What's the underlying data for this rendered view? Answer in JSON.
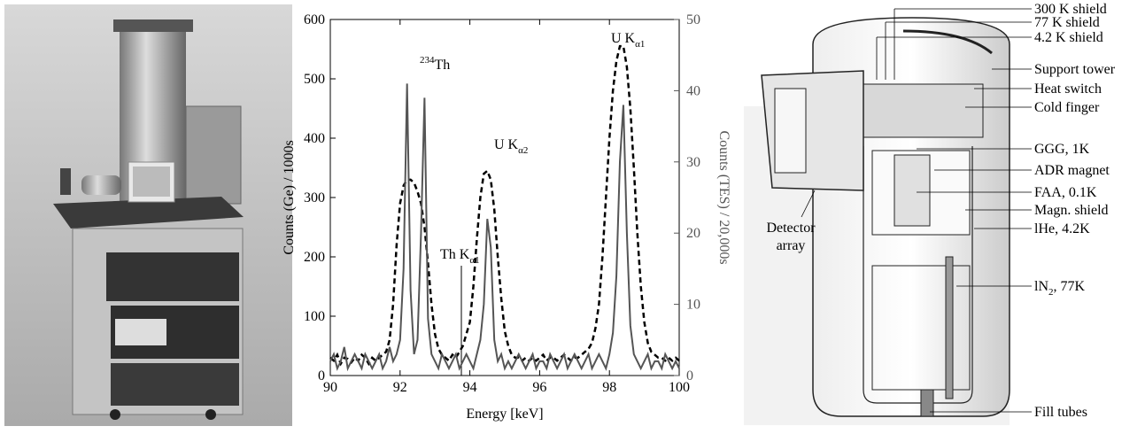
{
  "chart_data": {
    "type": "line",
    "x_label": "Energy [keV]",
    "y_label": "Counts (Ge) / 1000s",
    "y2_label": "Counts (TES) / 20,000s",
    "xlim": [
      90,
      100
    ],
    "xticks": [
      90,
      92,
      94,
      96,
      98,
      100
    ],
    "ylim": [
      0,
      600
    ],
    "yticks": [
      0,
      100,
      200,
      300,
      400,
      500,
      600
    ],
    "y2lim": [
      0,
      50
    ],
    "y2ticks": [
      0,
      10,
      20,
      30,
      40,
      50
    ],
    "x": [
      90.0,
      90.1,
      90.2,
      90.3,
      90.4,
      90.5,
      90.6,
      90.7,
      90.8,
      90.9,
      91.0,
      91.1,
      91.2,
      91.3,
      91.4,
      91.5,
      91.6,
      91.7,
      91.8,
      91.9,
      92.0,
      92.1,
      92.2,
      92.3,
      92.4,
      92.5,
      92.6,
      92.7,
      92.8,
      92.9,
      93.0,
      93.1,
      93.2,
      93.3,
      93.4,
      93.5,
      93.6,
      93.7,
      93.8,
      93.9,
      94.0,
      94.1,
      94.2,
      94.3,
      94.4,
      94.5,
      94.6,
      94.7,
      94.8,
      94.9,
      95.0,
      95.1,
      95.2,
      95.3,
      95.4,
      95.5,
      95.6,
      95.7,
      95.8,
      95.9,
      96.0,
      96.1,
      96.2,
      96.3,
      96.4,
      96.5,
      96.6,
      96.7,
      96.8,
      96.9,
      97.0,
      97.1,
      97.2,
      97.3,
      97.4,
      97.5,
      97.6,
      97.7,
      97.8,
      97.9,
      98.0,
      98.1,
      98.2,
      98.3,
      98.4,
      98.5,
      98.6,
      98.7,
      98.8,
      98.9,
      99.0,
      99.1,
      99.2,
      99.3,
      99.4,
      99.5,
      99.6,
      99.7,
      99.8,
      99.9,
      100.0
    ],
    "series": [
      {
        "color": "#000000",
        "dash": true,
        "axis": "y",
        "values": [
          30,
          25,
          35,
          20,
          30,
          28,
          22,
          30,
          25,
          35,
          30,
          20,
          30,
          25,
          30,
          35,
          40,
          60,
          120,
          220,
          290,
          320,
          330,
          330,
          325,
          310,
          290,
          250,
          190,
          120,
          70,
          45,
          35,
          30,
          25,
          35,
          30,
          40,
          50,
          70,
          90,
          150,
          230,
          300,
          340,
          345,
          330,
          280,
          200,
          130,
          75,
          50,
          35,
          30,
          30,
          25,
          30,
          25,
          30,
          25,
          30,
          35,
          25,
          30,
          30,
          25,
          30,
          35,
          30,
          25,
          30,
          30,
          35,
          40,
          45,
          55,
          80,
          120,
          200,
          300,
          400,
          480,
          530,
          555,
          555,
          520,
          450,
          350,
          240,
          150,
          90,
          55,
          40,
          35,
          30,
          30,
          25,
          30,
          25,
          30,
          25
        ]
      },
      {
        "color": "#555555",
        "dash": false,
        "axis": "y2",
        "values": [
          2,
          3,
          1,
          2,
          4,
          1,
          2,
          3,
          2,
          1,
          3,
          2,
          1,
          2,
          3,
          1,
          2,
          4,
          2,
          3,
          5,
          15,
          41,
          12,
          3,
          5,
          20,
          39,
          8,
          3,
          2,
          1,
          3,
          2,
          1,
          2,
          3,
          1,
          2,
          3,
          2,
          1,
          3,
          5,
          10,
          22,
          18,
          5,
          2,
          3,
          1,
          2,
          1,
          2,
          3,
          2,
          1,
          2,
          3,
          1,
          2,
          2,
          1,
          3,
          2,
          1,
          2,
          3,
          1,
          2,
          3,
          2,
          1,
          2,
          3,
          1,
          2,
          3,
          2,
          1,
          3,
          6,
          14,
          30,
          38,
          20,
          7,
          3,
          2,
          1,
          2,
          3,
          1,
          2,
          2,
          1,
          3,
          2,
          1,
          2,
          1
        ]
      }
    ],
    "annotations": [
      {
        "sup": "234",
        "text": "Th"
      },
      {
        "text": "Th K",
        "sub": "α1"
      },
      {
        "text": "U K",
        "sub": "α2"
      },
      {
        "text": "U K",
        "sub": "α1"
      }
    ]
  },
  "diagram": {
    "labels": [
      "300 K shield",
      "77 K shield",
      "4.2 K shield",
      "Support tower",
      "Heat switch",
      "Cold finger",
      "GGG, 1K",
      "ADR magnet",
      "FAA, 0.1K",
      "Magn. shield",
      "lHe, 4.2K",
      "Fill tubes"
    ],
    "ln2_label": {
      "text": "lN",
      "sub": "2",
      "tail": ", 77K"
    },
    "detector_label": [
      "Detector",
      "array"
    ]
  }
}
